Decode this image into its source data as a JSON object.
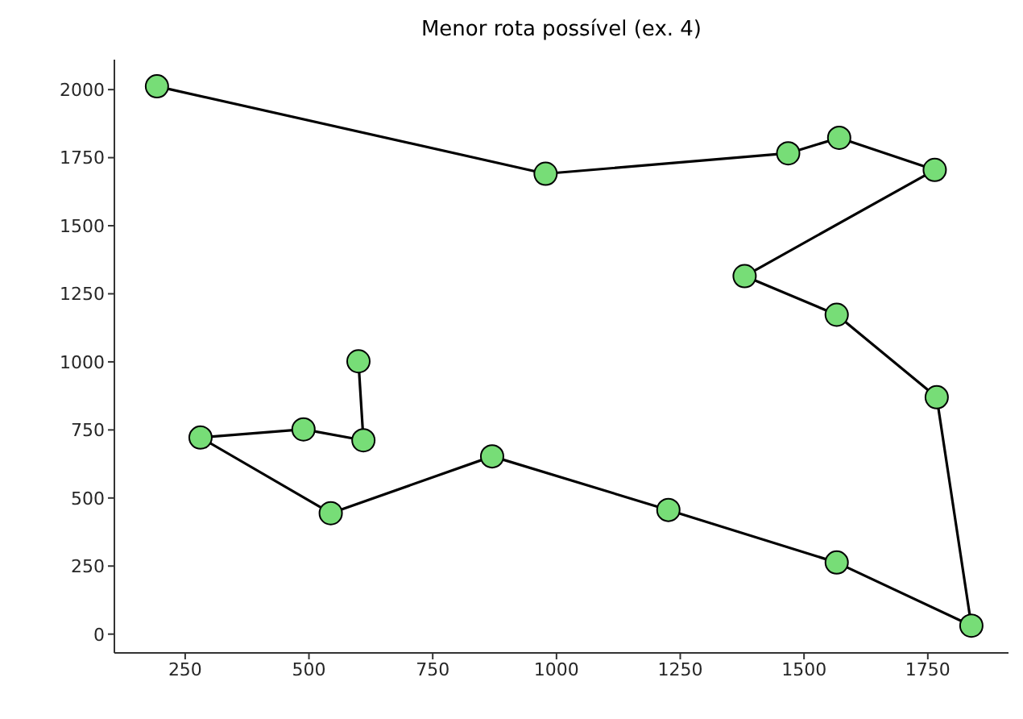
{
  "chart_data": {
    "type": "line",
    "title": "Menor rota possível (ex. 4)",
    "x": [
      193,
      978,
      1468,
      1571,
      1764,
      1380,
      1566,
      1768,
      1838,
      1566,
      1226,
      870,
      544,
      281,
      489,
      610,
      600
    ],
    "series": [
      {
        "color": "#77dd77",
        "values": [
          2012,
          1691,
          1766,
          1823,
          1705,
          1315,
          1173,
          870,
          31,
          263,
          456,
          653,
          444,
          722,
          752,
          712,
          1002
        ]
      }
    ],
    "xlim": [
      107,
      1913
    ],
    "ylim": [
      -69,
      2110
    ],
    "xticks": [
      250,
      500,
      750,
      1000,
      1250,
      1500,
      1750
    ],
    "yticks": [
      0,
      250,
      500,
      750,
      1000,
      1250,
      1500,
      1750,
      2000
    ],
    "marker": "circle",
    "grid": false,
    "legend": false
  }
}
